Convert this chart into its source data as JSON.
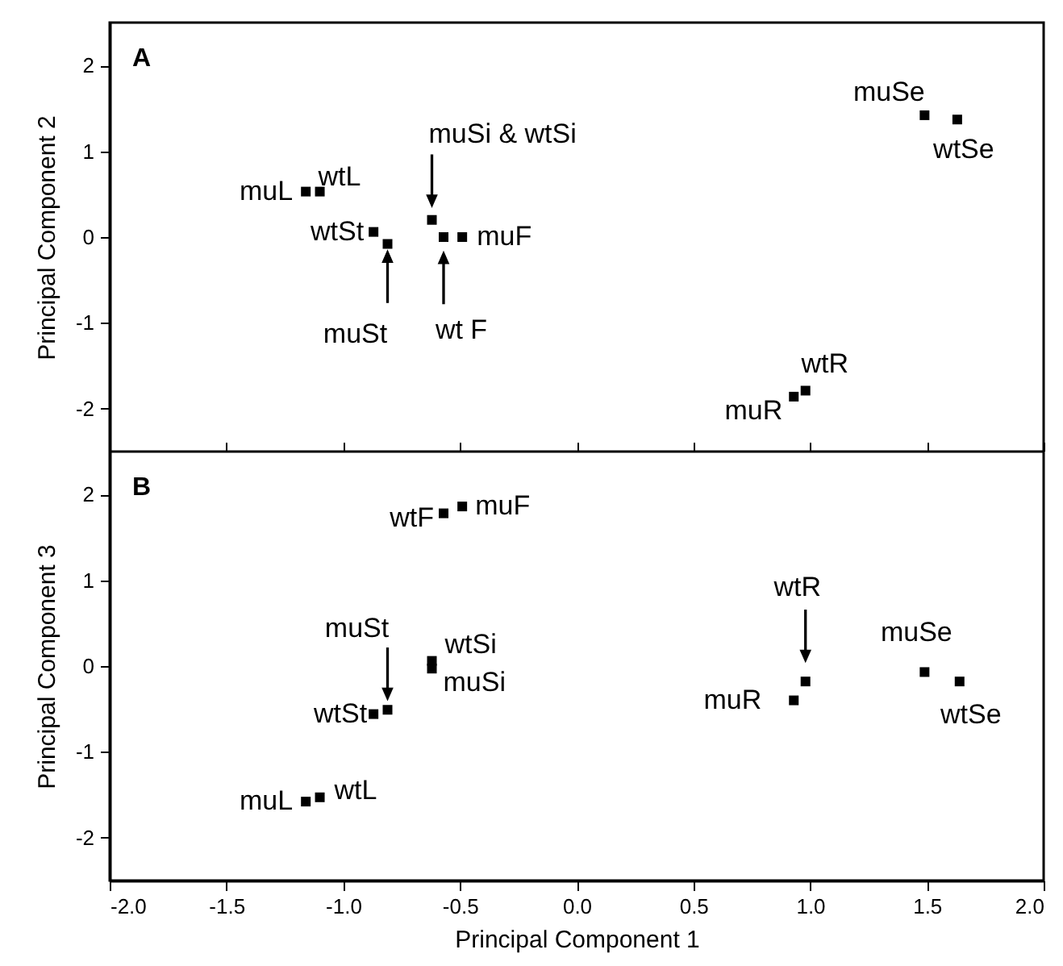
{
  "chart_data": [
    {
      "type": "scatter",
      "title": "A",
      "ylabel": "Principal Component 2",
      "tick_labels": "y",
      "marker": "square",
      "xlim": [
        -2,
        2
      ],
      "xticks": [
        {
          "value": -2,
          "label": null
        },
        {
          "value": -1.5,
          "label": null
        },
        {
          "value": -1,
          "label": null
        },
        {
          "value": -0.5,
          "label": null
        },
        {
          "value": 0,
          "label": null
        },
        {
          "value": 0.5,
          "label": null
        },
        {
          "value": 1,
          "label": null
        },
        {
          "value": 1.5,
          "label": null
        },
        {
          "value": 2,
          "label": null
        }
      ],
      "ylim": [
        -2.5,
        2.5
      ],
      "yticks": [
        -2,
        -1,
        0,
        1,
        2
      ],
      "series": [
        {
          "color": "#000000",
          "x": [
            -1.16,
            -1.1,
            -0.87,
            -0.81,
            -0.62,
            -0.57,
            -0.49,
            1.49,
            1.63,
            0.93,
            0.98
          ],
          "values": [
            0.53,
            0.53,
            0.06,
            -0.08,
            0.2,
            0,
            0,
            1.42,
            1.37,
            -1.86,
            -1.79
          ]
        }
      ],
      "annotations": [
        {
          "text": "muL",
          "x": -1.16,
          "y": 0.53
        },
        {
          "text": "wtL",
          "x": -1.1,
          "y": 0.53
        },
        {
          "text": "wtSt",
          "x": -0.87,
          "y": 0.06
        },
        {
          "text": "muSt",
          "x": -0.81,
          "y": -0.08
        },
        {
          "text": "muSi & wtSi",
          "x": -0.62,
          "y": 0.2
        },
        {
          "text": "wt F",
          "x": -0.57,
          "y": 0
        },
        {
          "text": "muF",
          "x": -0.49,
          "y": 0
        },
        {
          "text": "muSe",
          "x": 1.49,
          "y": 1.42
        },
        {
          "text": "wtSe",
          "x": 1.63,
          "y": 1.37
        },
        {
          "text": "muR",
          "x": 0.93,
          "y": -1.86
        },
        {
          "text": "wtR",
          "x": 0.98,
          "y": -1.79
        }
      ]
    },
    {
      "type": "scatter",
      "title": "B",
      "xlabel": "Principal Component 1",
      "ylabel": "Principal Component 3",
      "marker": "square",
      "xlim": [
        -2,
        2
      ],
      "xticks": [
        {
          "value": -2,
          "label": "-2.0"
        },
        {
          "value": -1.5,
          "label": "-1.5"
        },
        {
          "value": -1,
          "label": "-1.0"
        },
        {
          "value": -0.5,
          "label": "-0.5"
        },
        {
          "value": 0,
          "label": "0.0"
        },
        {
          "value": 0.5,
          "label": "0.5"
        },
        {
          "value": 1,
          "label": "1.0"
        },
        {
          "value": 1.5,
          "label": "1.5"
        },
        {
          "value": 2,
          "label": "2.0"
        }
      ],
      "ylim": [
        -2.5,
        2.5
      ],
      "yticks": [
        -2,
        -1,
        0,
        1,
        2
      ],
      "series": [
        {
          "color": "#000000",
          "x": [
            -0.57,
            -0.49,
            -0.62,
            -0.62,
            -0.81,
            -0.87,
            -1.16,
            -1.1,
            0.98,
            0.93,
            1.49,
            1.64
          ],
          "values": [
            1.78,
            1.86,
            0.06,
            -0.03,
            -0.51,
            -0.56,
            -1.58,
            -1.53,
            -0.18,
            -0.4,
            -0.07,
            -0.18
          ]
        }
      ],
      "annotations": [
        {
          "text": "wtF",
          "x": -0.57,
          "y": 1.78
        },
        {
          "text": "muF",
          "x": -0.49,
          "y": 1.86
        },
        {
          "text": "wtSi",
          "x": -0.62,
          "y": 0.06
        },
        {
          "text": "muSi",
          "x": -0.62,
          "y": -0.03
        },
        {
          "text": "muSt",
          "x": -0.81,
          "y": -0.51
        },
        {
          "text": "wtSt",
          "x": -0.87,
          "y": -0.56
        },
        {
          "text": "muL",
          "x": -1.16,
          "y": -1.58
        },
        {
          "text": "wtL",
          "x": -1.1,
          "y": -1.53
        },
        {
          "text": "wtR",
          "x": 0.98,
          "y": -0.18
        },
        {
          "text": "muR",
          "x": 0.93,
          "y": -0.4
        },
        {
          "text": "muSe",
          "x": 1.49,
          "y": -0.07
        },
        {
          "text": "wtSe",
          "x": 1.64,
          "y": -0.18
        }
      ]
    }
  ]
}
